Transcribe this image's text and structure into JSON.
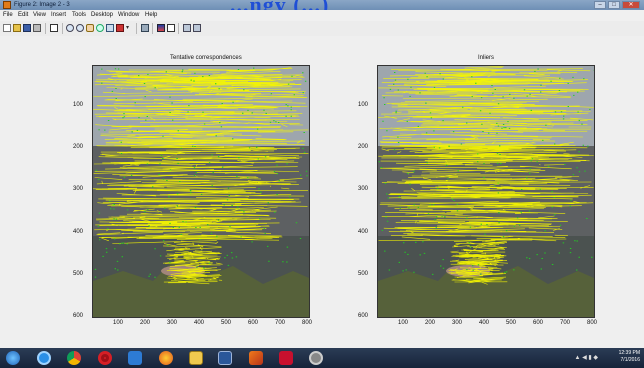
{
  "window": {
    "title": "Figure 2: Image 2 - 3",
    "overlay_text": "...ngy (...)"
  },
  "menu": [
    "File",
    "Edit",
    "View",
    "Insert",
    "Tools",
    "Desktop",
    "Window",
    "Help"
  ],
  "toolbar_icons": [
    "new-file-icon",
    "open-folder-icon",
    "save-icon",
    "print-icon",
    "pointer-icon",
    "zoom-in-icon",
    "zoom-out-icon",
    "pan-icon",
    "rotate-icon",
    "data-cursor-icon",
    "brush-icon",
    "link-icon",
    "colorbar-icon",
    "legend-icon",
    "hide-plot-tools-icon",
    "show-plot-tools-icon"
  ],
  "plots": [
    {
      "title": "Tentative correspondences",
      "yticks": [
        "100",
        "200",
        "300",
        "400",
        "500",
        "600"
      ],
      "xticks": [
        "100",
        "200",
        "300",
        "400",
        "500",
        "600",
        "700",
        "800"
      ]
    },
    {
      "title": "Inliers",
      "yticks": [
        "100",
        "200",
        "300",
        "400",
        "500",
        "600"
      ],
      "xticks": [
        "100",
        "200",
        "300",
        "400",
        "500",
        "600",
        "700",
        "800"
      ]
    }
  ],
  "colors": {
    "match_line": "#f5f500",
    "match_point": "#22cc22",
    "taskbar": "#1f2f47"
  },
  "taskbar": {
    "apps": [
      "start-button-icon",
      "internet-explorer-icon",
      "chrome-icon",
      "opera-icon",
      "media-player-icon",
      "firefox-icon",
      "file-explorer-icon",
      "word-icon",
      "matlab-icon",
      "acrobat-icon",
      "camera-icon"
    ],
    "time": "12:39 PM",
    "date": "7/1/2016"
  }
}
